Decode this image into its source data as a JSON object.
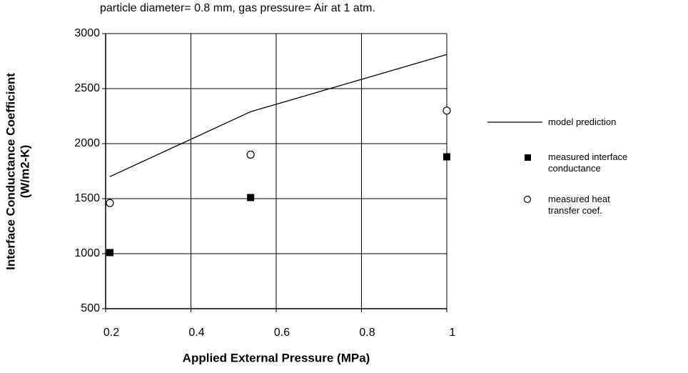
{
  "chart_data": {
    "type": "scatter",
    "title": "particle diameter= 0.8 mm, gas pressure= Air at 1 atm.",
    "xlabel": "Applied External Pressure (MPa)",
    "ylabel": [
      "Interface Conductance Coefficient",
      "(W/m2-K)"
    ],
    "xlim": [
      0.2,
      1
    ],
    "xticks": [
      0.2,
      0.4,
      0.6,
      0.8,
      1
    ],
    "ylim": [
      500,
      3000
    ],
    "yticks": [
      500,
      1000,
      1500,
      2000,
      2500,
      3000
    ],
    "grid": true,
    "legend": "right",
    "series": [
      {
        "name": "model prediction",
        "mark": "line",
        "color": "#000000",
        "x": [
          0.21,
          0.54,
          1
        ],
        "values": [
          1700,
          2290,
          2810
        ]
      },
      {
        "name": "measured interface conductance",
        "mark": "square",
        "color": "#000000",
        "x": [
          0.21,
          0.54,
          1
        ],
        "values": [
          1010,
          1510,
          1880
        ]
      },
      {
        "name": "measured heat transfer coef.",
        "mark": "circle",
        "color": "#000000",
        "x": [
          0.21,
          0.54,
          1
        ],
        "values": [
          1460,
          1900,
          2300
        ]
      }
    ]
  }
}
